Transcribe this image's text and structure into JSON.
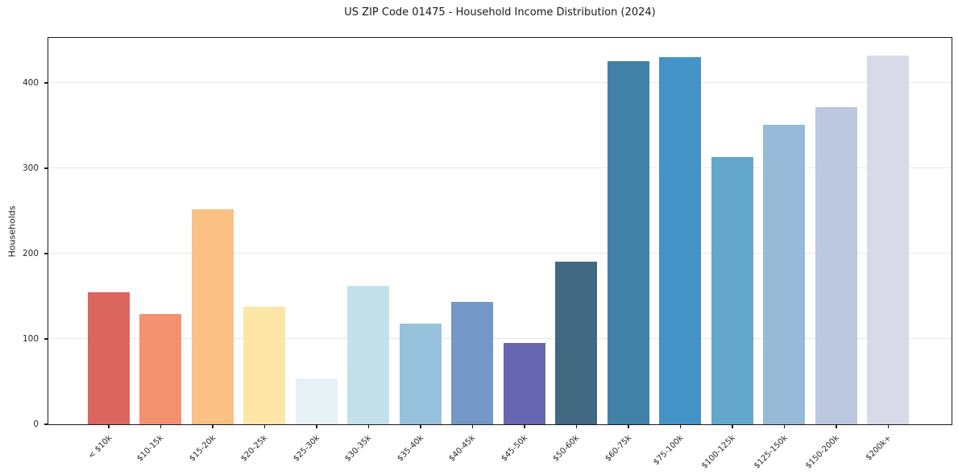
{
  "chart_data": {
    "type": "bar",
    "title": "US ZIP Code 01475 - Household Income Distribution (2024)",
    "xlabel": "",
    "ylabel": "Households",
    "categories": [
      "< $10k",
      "$10-15k",
      "$15-20k",
      "$20-25k",
      "$25-30k",
      "$30-35k",
      "$35-40k",
      "$40-45k",
      "$45-50k",
      "$50-60k",
      "$60-75k",
      "$75-100k",
      "$100-125k",
      "$125-150k",
      "$150-200k",
      "$200k+"
    ],
    "values": [
      155,
      129,
      252,
      138,
      54,
      162,
      118,
      143,
      95,
      191,
      426,
      430,
      313,
      351,
      372,
      432
    ],
    "bar_colors": [
      "#d95b55",
      "#f28a68",
      "#fbbc7c",
      "#fde4a0",
      "#e4f1f5",
      "#bedfea",
      "#91bedb",
      "#6b92c4",
      "#5c5dab",
      "#35617a",
      "#3679a1",
      "#388cc3",
      "#5aa2c9",
      "#8fb6d4",
      "#b8c5de",
      "#d7d8e6"
    ],
    "ylim": [
      0,
      452
    ],
    "yticks": [
      0,
      100,
      200,
      300,
      400
    ],
    "grid": "horizontal",
    "gridline_color": "#e8e8e8",
    "spine_color": "#1a1a1a",
    "text_color": "#262626",
    "legend": "none",
    "x_tick_rotation": 45
  }
}
